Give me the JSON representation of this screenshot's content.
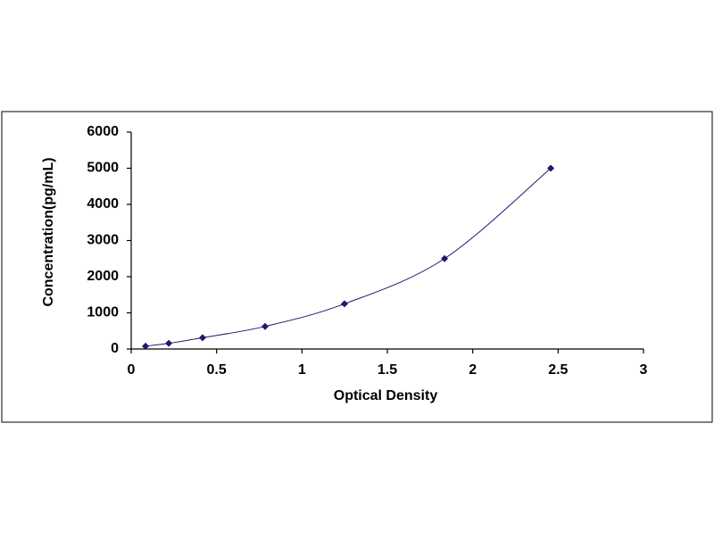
{
  "chart_data": {
    "type": "scatter",
    "x_label": "Optical Density",
    "y_label": "Concentration(pg/mL)",
    "x": [
      0.084,
      0.22,
      0.418,
      0.784,
      1.249,
      1.835,
      2.457
    ],
    "series": [
      {
        "color": "#1a1a6e",
        "values": [
          78,
          156,
          312,
          625,
          1250,
          2500,
          5000
        ]
      }
    ],
    "xlim": [
      0,
      3
    ],
    "xticks": [
      0,
      0.5,
      1,
      1.5,
      2,
      2.5,
      3
    ],
    "ylim": [
      0,
      6000
    ],
    "yticks": [
      0,
      1000,
      2000,
      3000,
      4000,
      5000,
      6000
    ],
    "grid": false
  }
}
